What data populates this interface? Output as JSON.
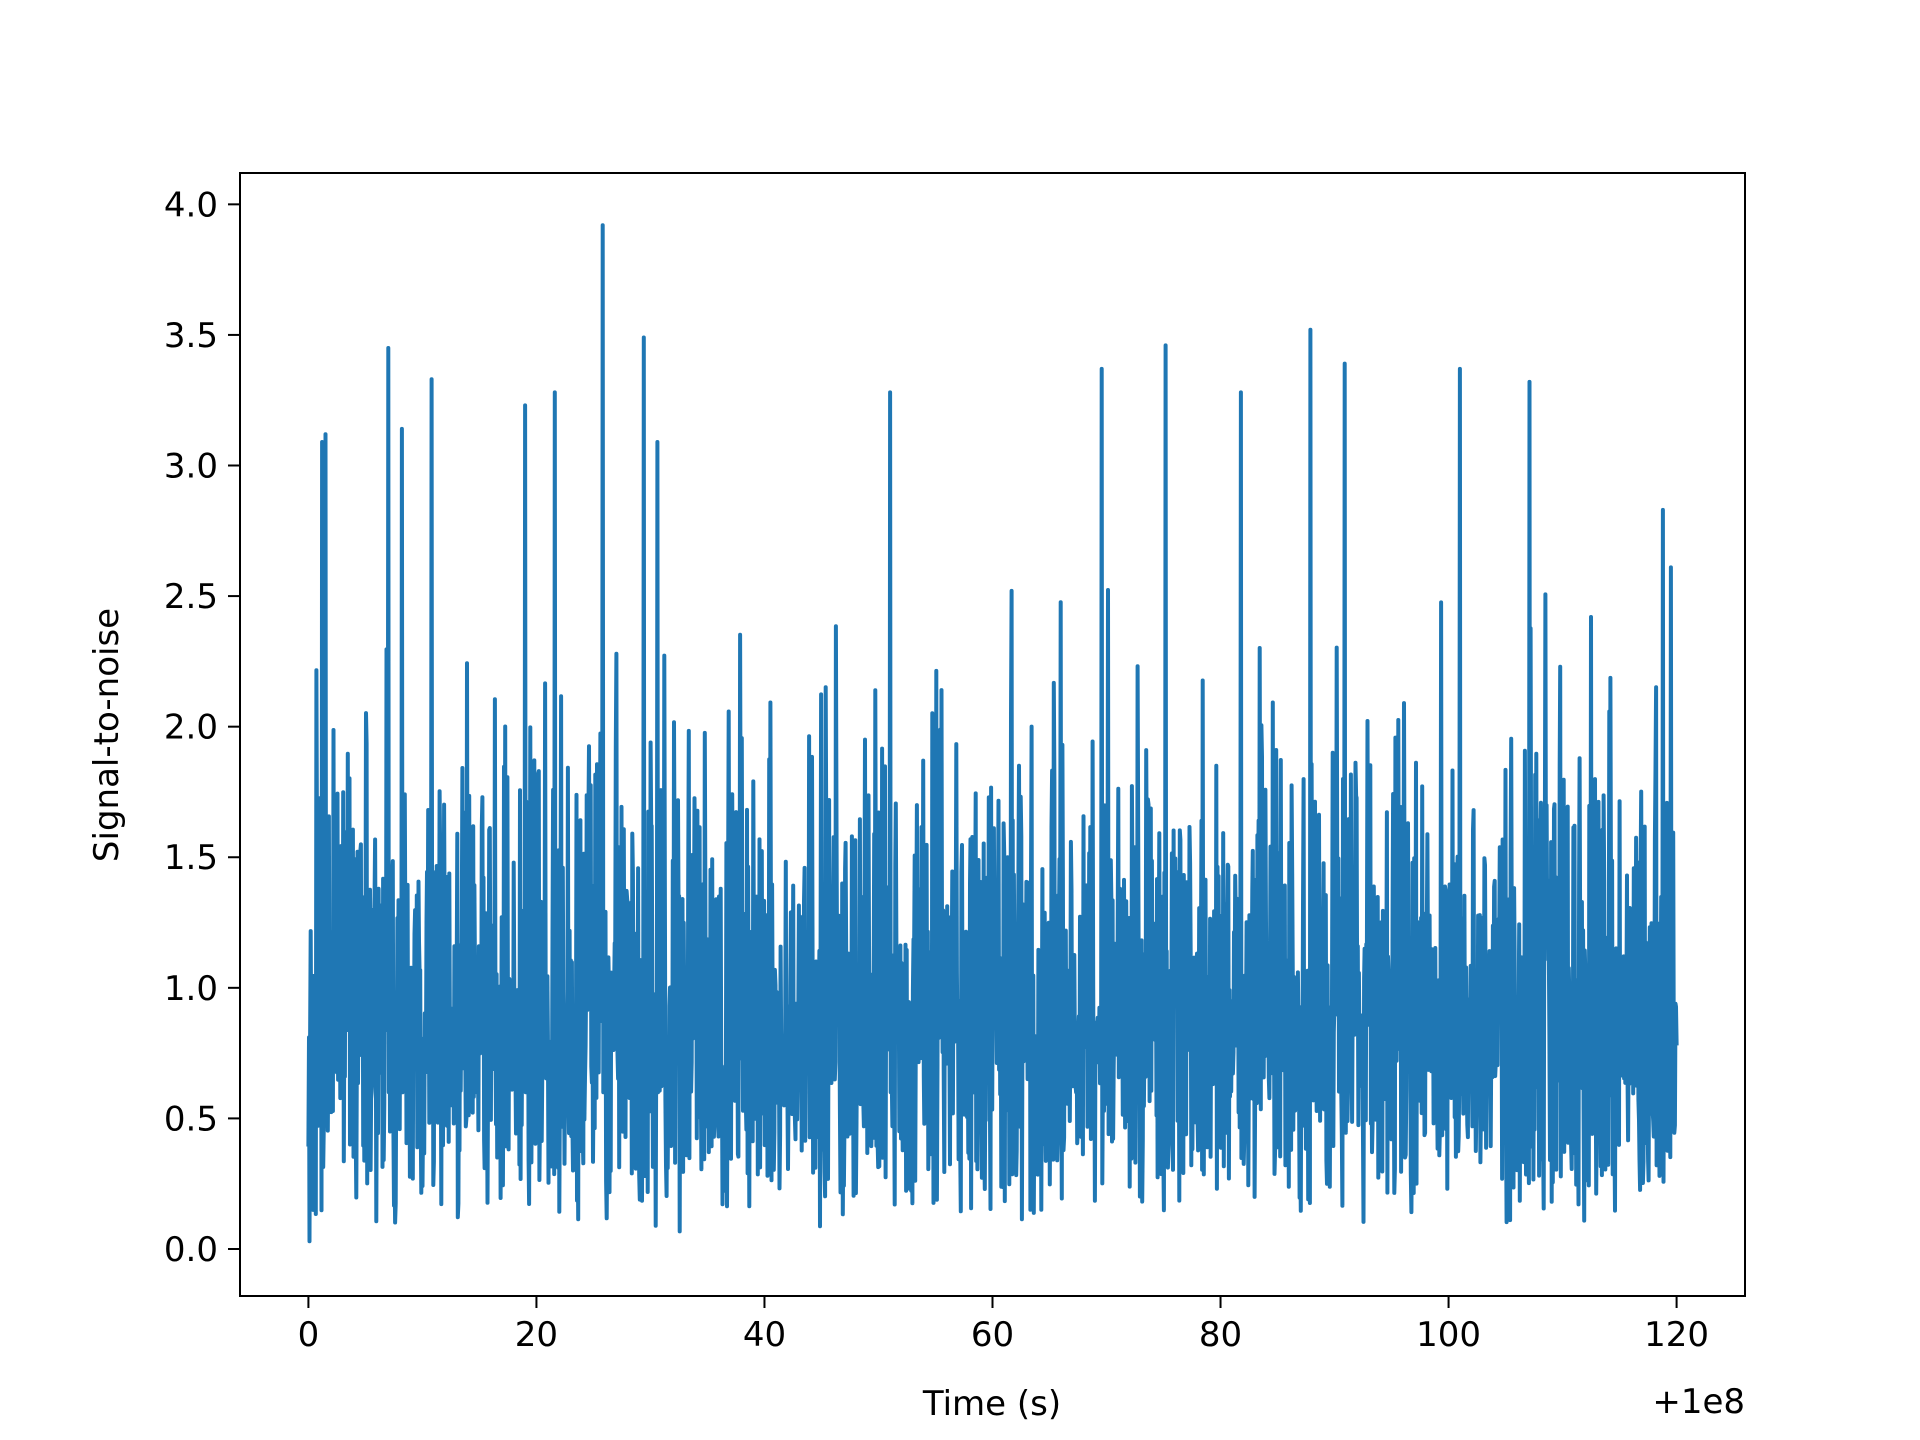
{
  "chart_data": {
    "type": "line",
    "title": "",
    "xlabel": "Time (s)",
    "ylabel": "Signal-to-noise",
    "x_offset_text": "+1e8",
    "x_offset": 100000000,
    "xlim": [
      -6,
      126
    ],
    "ylim": [
      -0.18,
      4.12
    ],
    "xticks": [
      0,
      20,
      40,
      60,
      80,
      100,
      120
    ],
    "xtick_labels": [
      "0",
      "20",
      "40",
      "60",
      "80",
      "100",
      "120"
    ],
    "yticks": [
      0.0,
      0.5,
      1.0,
      1.5,
      2.0,
      2.5,
      3.0,
      3.5,
      4.0
    ],
    "ytick_labels": [
      "0.0",
      "0.5",
      "1.0",
      "1.5",
      "2.0",
      "2.5",
      "3.0",
      "3.5",
      "4.0"
    ],
    "grid": false,
    "series": [
      {
        "color": "#1f77b4",
        "x_start": 0,
        "x_end": 120,
        "sample_count": 2400,
        "peaks": [
          {
            "x": 1.2,
            "y": 3.09
          },
          {
            "x": 1.5,
            "y": 3.12
          },
          {
            "x": 7.0,
            "y": 3.45
          },
          {
            "x": 8.2,
            "y": 3.14
          },
          {
            "x": 10.8,
            "y": 3.33
          },
          {
            "x": 19.0,
            "y": 3.23
          },
          {
            "x": 21.6,
            "y": 3.28
          },
          {
            "x": 25.8,
            "y": 3.92
          },
          {
            "x": 29.4,
            "y": 3.49
          },
          {
            "x": 30.6,
            "y": 3.09
          },
          {
            "x": 51.0,
            "y": 3.28
          },
          {
            "x": 69.6,
            "y": 3.37
          },
          {
            "x": 75.2,
            "y": 3.46
          },
          {
            "x": 81.8,
            "y": 3.28
          },
          {
            "x": 87.9,
            "y": 3.52
          },
          {
            "x": 90.9,
            "y": 3.39
          },
          {
            "x": 101.0,
            "y": 3.37
          },
          {
            "x": 107.1,
            "y": 3.32
          },
          {
            "x": 112.5,
            "y": 2.42
          },
          {
            "x": 118.8,
            "y": 2.83
          },
          {
            "x": 119.5,
            "y": 2.61
          }
        ],
        "min_value": 0.02,
        "max_value": 3.92,
        "mean_value": 1.0
      }
    ]
  }
}
